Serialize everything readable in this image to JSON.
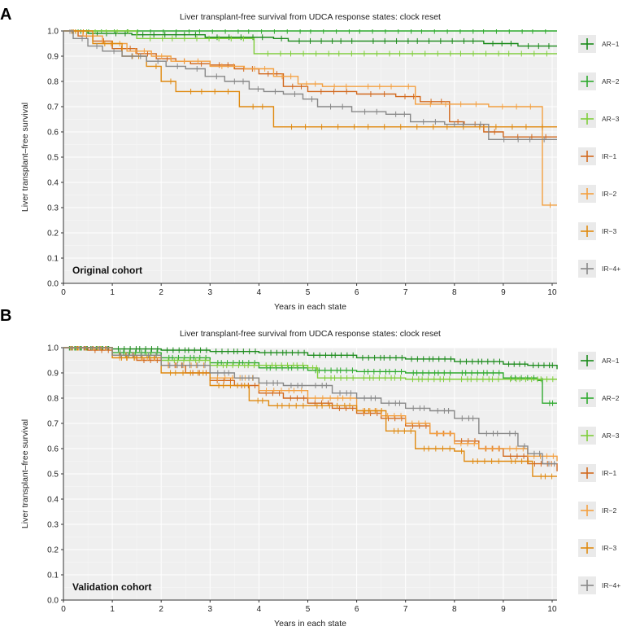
{
  "chart_data": [
    {
      "type": "line",
      "panel": "A",
      "title": "Liver transplant-free survival from UDCA response states: clock reset",
      "xlabel": "Years in each state",
      "ylabel": "Liver transplant–free survival",
      "cohort_label": "Original cohort",
      "xlim": [
        0,
        10.1
      ],
      "ylim": [
        0,
        1.0
      ],
      "xticks": [
        "0",
        "1",
        "2",
        "3",
        "4",
        "5",
        "6",
        "7",
        "8",
        "9",
        "10"
      ],
      "yticks": [
        "0.0",
        "0.1",
        "0.2",
        "0.3",
        "0.4",
        "0.5",
        "0.6",
        "0.7",
        "0.8",
        "0.9",
        "1.0"
      ],
      "series": [
        {
          "name": "AR−1",
          "color": "#1a8a1a",
          "x": [
            0,
            0.5,
            1.4,
            2.9,
            4.3,
            4.6,
            6.1,
            8.6,
            9.3,
            10.1
          ],
          "y": [
            1.0,
            0.99,
            0.985,
            0.975,
            0.97,
            0.96,
            0.96,
            0.95,
            0.94,
            0.94
          ]
        },
        {
          "name": "AR−2",
          "color": "#2eaa2e",
          "x": [
            0,
            10.1
          ],
          "y": [
            1.0,
            1.0
          ]
        },
        {
          "name": "AR−3",
          "color": "#7fce3a",
          "x": [
            0,
            1.5,
            3.9,
            10.1
          ],
          "y": [
            1.0,
            0.97,
            0.91,
            0.91
          ]
        },
        {
          "name": "IR−1",
          "color": "#d2691e",
          "x": [
            0,
            0.3,
            0.6,
            1.0,
            1.5,
            1.9,
            2.3,
            2.6,
            3.0,
            3.5,
            4.0,
            4.5,
            5.0,
            6.0,
            6.8,
            7.3,
            7.9,
            8.2,
            8.6,
            9.0,
            10.1
          ],
          "y": [
            1.0,
            0.98,
            0.96,
            0.93,
            0.91,
            0.89,
            0.88,
            0.87,
            0.865,
            0.85,
            0.83,
            0.78,
            0.76,
            0.75,
            0.74,
            0.72,
            0.64,
            0.63,
            0.6,
            0.58,
            0.58
          ]
        },
        {
          "name": "IR−2",
          "color": "#f4a040",
          "x": [
            0,
            0.4,
            0.8,
            1.3,
            1.8,
            2.2,
            3.0,
            3.7,
            4.3,
            4.8,
            5.3,
            6.0,
            6.9,
            7.2,
            8.7,
            9.8,
            10.1
          ],
          "y": [
            1.0,
            0.98,
            0.95,
            0.92,
            0.9,
            0.88,
            0.86,
            0.85,
            0.82,
            0.79,
            0.78,
            0.78,
            0.78,
            0.71,
            0.7,
            0.31,
            0.31
          ]
        },
        {
          "name": "IR−3",
          "color": "#e08a10",
          "x": [
            0,
            0.6,
            1.2,
            1.7,
            2.0,
            2.3,
            3.6,
            4.3,
            10.1
          ],
          "y": [
            1.0,
            0.95,
            0.9,
            0.86,
            0.8,
            0.76,
            0.7,
            0.62,
            0.62
          ]
        },
        {
          "name": "IR−4+",
          "color": "#888888",
          "x": [
            0,
            0.2,
            0.5,
            0.8,
            1.2,
            1.7,
            2.1,
            2.5,
            2.9,
            3.3,
            3.8,
            4.1,
            4.5,
            4.9,
            5.2,
            5.9,
            6.6,
            7.1,
            7.8,
            8.3,
            8.7,
            10.1
          ],
          "y": [
            1.0,
            0.97,
            0.94,
            0.92,
            0.9,
            0.88,
            0.86,
            0.85,
            0.82,
            0.8,
            0.77,
            0.76,
            0.75,
            0.73,
            0.7,
            0.68,
            0.67,
            0.64,
            0.63,
            0.63,
            0.57,
            0.57
          ]
        }
      ]
    },
    {
      "type": "line",
      "panel": "B",
      "title": "Liver transplant-free survival from UDCA response states: clock reset",
      "xlabel": "Years in each state",
      "ylabel": "Liver transplant–free survival",
      "cohort_label": "Validation cohort",
      "xlim": [
        0,
        10.1
      ],
      "ylim": [
        0,
        1.0
      ],
      "xticks": [
        "0",
        "1",
        "2",
        "3",
        "4",
        "5",
        "6",
        "7",
        "8",
        "9",
        "10"
      ],
      "yticks": [
        "0.0",
        "0.1",
        "0.2",
        "0.3",
        "0.4",
        "0.5",
        "0.6",
        "0.7",
        "0.8",
        "0.9",
        "1.0"
      ],
      "series": [
        {
          "name": "AR−1",
          "color": "#1a8a1a",
          "x": [
            0,
            1,
            2,
            3,
            4,
            5,
            6,
            7,
            8,
            9,
            9.5,
            10.1
          ],
          "y": [
            1.0,
            0.995,
            0.99,
            0.985,
            0.98,
            0.97,
            0.96,
            0.955,
            0.945,
            0.935,
            0.93,
            0.915
          ]
        },
        {
          "name": "AR−2",
          "color": "#2eaa2e",
          "x": [
            0,
            1,
            2,
            3,
            4,
            5,
            6,
            7,
            8,
            9,
            9.7,
            9.8,
            10.1
          ],
          "y": [
            1.0,
            0.98,
            0.96,
            0.94,
            0.92,
            0.91,
            0.905,
            0.9,
            0.9,
            0.88,
            0.87,
            0.78,
            0.78
          ]
        },
        {
          "name": "AR−3",
          "color": "#7fce3a",
          "x": [
            0,
            1,
            2,
            3,
            4,
            5,
            5.2,
            6,
            7,
            8,
            9,
            10.1
          ],
          "y": [
            1.0,
            0.97,
            0.95,
            0.93,
            0.93,
            0.92,
            0.88,
            0.88,
            0.875,
            0.875,
            0.875,
            0.875
          ]
        },
        {
          "name": "IR−1",
          "color": "#d2691e",
          "x": [
            0,
            0.5,
            1,
            1.5,
            2,
            2.5,
            3,
            3.5,
            4,
            4.5,
            5,
            5.5,
            6,
            6.5,
            7,
            7.5,
            8,
            8.5,
            9,
            9.5,
            10.1
          ],
          "y": [
            1.0,
            0.99,
            0.97,
            0.95,
            0.93,
            0.9,
            0.87,
            0.85,
            0.82,
            0.8,
            0.78,
            0.76,
            0.74,
            0.72,
            0.69,
            0.66,
            0.63,
            0.6,
            0.57,
            0.54,
            0.51
          ]
        },
        {
          "name": "IR−2",
          "color": "#f4a040",
          "x": [
            0,
            1,
            2,
            3,
            4,
            5,
            6,
            6.5,
            7,
            7.5,
            8,
            8.5,
            9,
            9.5,
            10.1
          ],
          "y": [
            1.0,
            0.96,
            0.93,
            0.88,
            0.83,
            0.8,
            0.75,
            0.73,
            0.7,
            0.66,
            0.62,
            0.6,
            0.6,
            0.57,
            0.55
          ]
        },
        {
          "name": "IR−3",
          "color": "#e08a10",
          "x": [
            0,
            1,
            2,
            3,
            3.8,
            4.2,
            5,
            6,
            6.6,
            7.2,
            8,
            8.2,
            9,
            9.6,
            10.1
          ],
          "y": [
            1.0,
            0.96,
            0.9,
            0.85,
            0.79,
            0.77,
            0.77,
            0.75,
            0.67,
            0.6,
            0.59,
            0.55,
            0.55,
            0.49,
            0.49
          ]
        },
        {
          "name": "IR−4+",
          "color": "#888888",
          "x": [
            0,
            1,
            2,
            3,
            3.5,
            4,
            4.5,
            5,
            5.5,
            6,
            6.5,
            7,
            7.5,
            8,
            8.5,
            9,
            9.3,
            9.5,
            9.8,
            10.1
          ],
          "y": [
            1.0,
            0.97,
            0.93,
            0.9,
            0.88,
            0.86,
            0.85,
            0.85,
            0.82,
            0.8,
            0.78,
            0.76,
            0.75,
            0.72,
            0.66,
            0.66,
            0.61,
            0.58,
            0.54,
            0.54
          ]
        }
      ]
    }
  ],
  "panels": [
    {
      "letter": "A"
    },
    {
      "letter": "B"
    }
  ],
  "legend_symbol": "+"
}
